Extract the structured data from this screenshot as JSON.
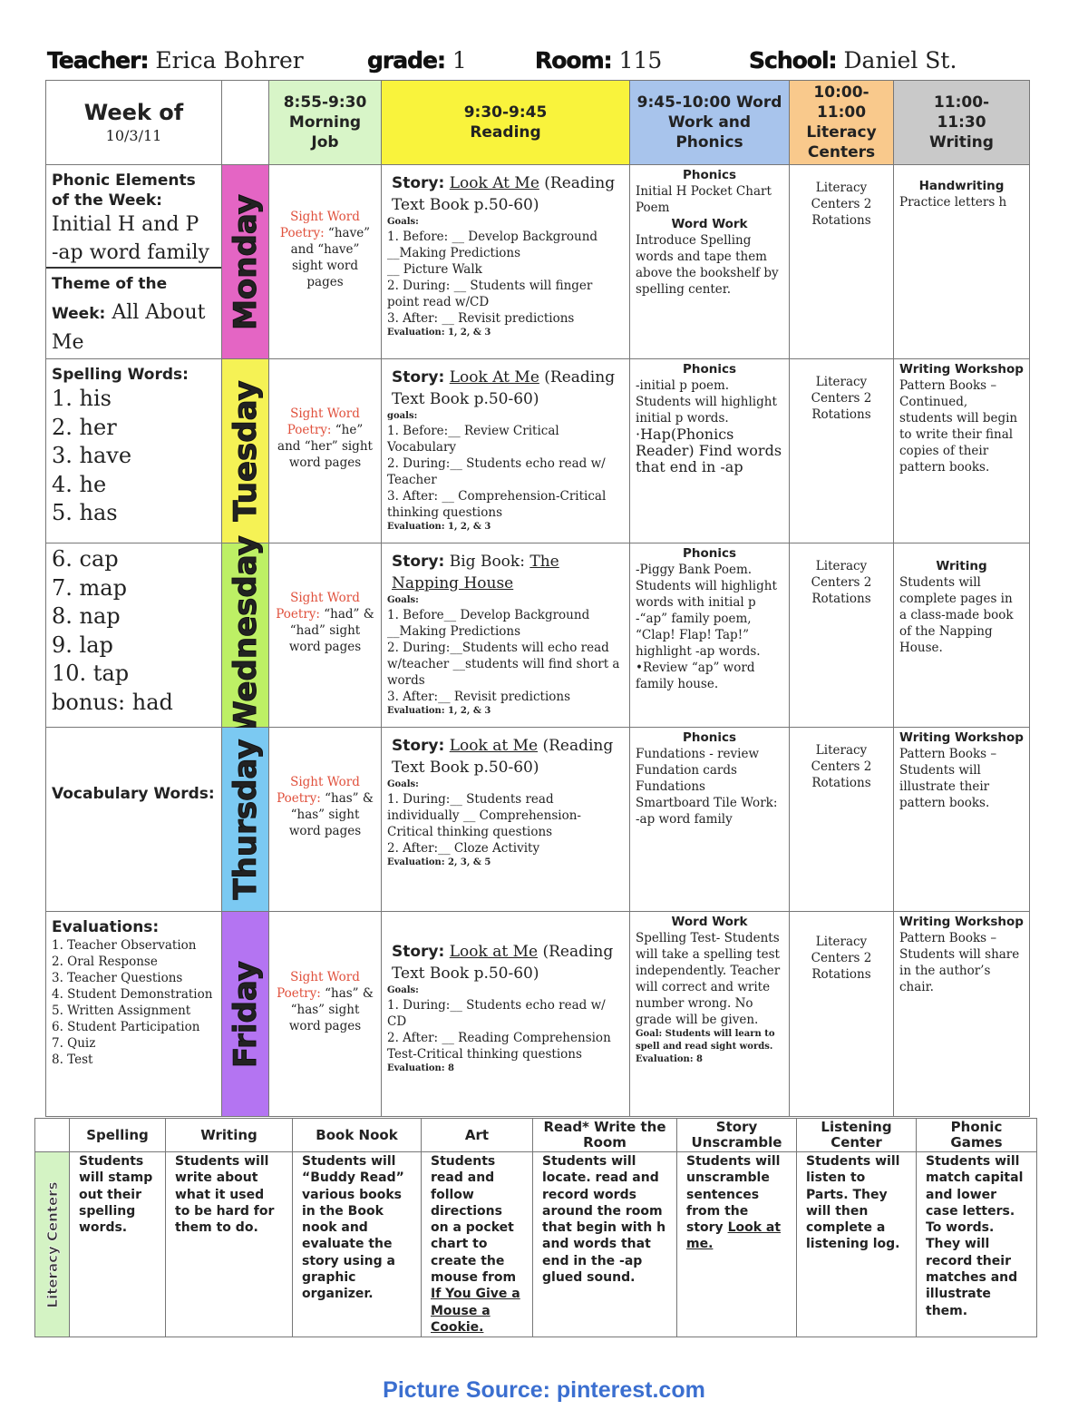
{
  "header": {
    "teacher_label": "Teacher:",
    "teacher": "Erica Bohrer",
    "grade_label": "grade:",
    "grade": "1",
    "room_label": "Room:",
    "room": "115",
    "school_label": "School:",
    "school": "Daniel St."
  },
  "columns": {
    "week_of": "Week of",
    "week_date": "10/3/11",
    "morning": "8:55-9:30 Morning Job",
    "reading": "9:30-9:45 Reading",
    "wordwork": "9:45-10:00 Word Work and Phonics",
    "literacy": "10:00-11:00 Literacy Centers",
    "writing": "11:00-11:30 Writing"
  },
  "colors": {
    "morning": "#d8f5c8",
    "reading": "#f9f33c",
    "wordwork": "#a8c4ec",
    "literacy": "#f9c98c",
    "writing": "#c9c9c9",
    "monday": "#e465c4",
    "tuesday": "#f5f255",
    "wednesday": "#bdf065",
    "thursday": "#7bc9f2",
    "friday": "#b474f2"
  },
  "days": [
    {
      "name": "Monday",
      "left": {
        "h1": "Phonic Elements of the Week:",
        "l1": "Initial H and P",
        "l2": "-ap word family",
        "h2": "Theme of the Week:",
        "l3": "All About Me"
      },
      "morning": {
        "label": "Sight Word Poetry:",
        "text": "“have” and “have” sight word pages"
      },
      "reading": {
        "story_label": "Story:",
        "title": "Look At Me",
        "rest": "(Reading Text Book p.50-60)",
        "goals": "Goals:",
        "lines": [
          "1. Before: __ Develop Background",
          "__Making Predictions",
          " __ Picture Walk",
          "2. During: __ Students will finger point read w/CD",
          "3. After: __ Revisit predictions"
        ],
        "evaluation": "Evaluation: 1, 2, & 3"
      },
      "wordwork": {
        "h1": "Phonics",
        "t1": "Initial H Pocket Chart Poem",
        "h2": "Word Work",
        "t2": "Introduce Spelling words and tape them above the bookshelf by spelling center."
      },
      "literacy": "Literacy Centers 2 Rotations",
      "writing": {
        "h": "Handwriting",
        "t": "Practice letters h"
      }
    },
    {
      "name": "Tuesday",
      "left": {
        "h1": "Spelling Words:",
        "items": [
          "1. his",
          "2. her",
          "3. have",
          "4. he",
          "5. has"
        ]
      },
      "morning": {
        "label": "Sight Word Poetry:",
        "text": "“he” and “her” sight word pages"
      },
      "reading": {
        "story_label": "Story:",
        "title": "Look At Me",
        "rest": "(Reading Text Book p.50-60)",
        "goals": "goals:",
        "lines": [
          "1. Before:__ Review Critical Vocabulary",
          "2. During:__ Students echo read w/ Teacher",
          "3. After: __ Comprehension-Critical thinking questions"
        ],
        "evaluation": "Evaluation: 1, 2, & 3"
      },
      "wordwork": {
        "h1": "Phonics",
        "t1": "-initial p poem. Students will highlight initial p words.",
        "t2": "·Hap(Phonics Reader) Find words that end in -ap"
      },
      "literacy": "Literacy Centers 2 Rotations",
      "writing": {
        "h": "Writing Workshop",
        "t": "Pattern Books – Continued, students will begin to write their final copies of their pattern books."
      }
    },
    {
      "name": "Wednesday",
      "left": {
        "items": [
          "6. cap",
          "7. map",
          "8. nap",
          "9. lap",
          "10. tap",
          "bonus: had"
        ]
      },
      "morning": {
        "label": "Sight Word Poetry:",
        "text": "“had” & “had” sight word pages"
      },
      "reading": {
        "story_label": "Story:",
        "prefix": "Big Book: ",
        "title": "The Napping House",
        "goals": "Goals:",
        "lines": [
          "1. Before__ Develop Background",
          "__Making Predictions",
          "2. During:__Students will echo read w/teacher __students will find short a words",
          "3. After:__ Revisit predictions"
        ],
        "evaluation": "Evaluation: 1, 2, & 3"
      },
      "wordwork": {
        "h1": "Phonics",
        "t1": "-Piggy Bank Poem. Students will highlight words with initial p -“ap” family poem, “Clap! Flap! Tap!” highlight -ap words. •Review “ap” word family house."
      },
      "literacy": "Literacy Centers 2 Rotations",
      "writing": {
        "h": "Writing",
        "t": "Students will complete pages in a class-made book of the Napping House."
      }
    },
    {
      "name": "Thursday",
      "left": {
        "h1": "Vocabulary Words:"
      },
      "morning": {
        "label": "Sight Word Poetry:",
        "text": "“has” & “has” sight word pages"
      },
      "reading": {
        "story_label": "Story:",
        "title": "Look at Me",
        "rest": "(Reading Text Book p.50-60)",
        "goals": "Goals:",
        "lines": [
          "1. During:__ Students read individually __ Comprehension-Critical thinking questions",
          "2. After:__ Cloze Activity"
        ],
        "evaluation": "Evaluation: 2, 3, & 5"
      },
      "wordwork": {
        "h1": "Phonics",
        "t1": "Fundations - review Fundation cards Fundations Smartboard Tile Work: -ap word family"
      },
      "literacy": "Literacy Centers 2 Rotations",
      "writing": {
        "h": "Writing Workshop",
        "t": "Pattern Books – Students will illustrate their pattern books."
      }
    },
    {
      "name": "Friday",
      "left": {
        "h1": "Evaluations:",
        "items": [
          "1. Teacher Observation",
          "2. Oral Response",
          "3. Teacher Questions",
          "4. Student Demonstration",
          "5. Written Assignment",
          "6. Student Participation",
          "7. Quiz",
          "8. Test"
        ]
      },
      "morning": {
        "label": "Sight Word Poetry:",
        "text": "“has” & “has” sight word pages"
      },
      "reading": {
        "story_label": "Story:",
        "title": "Look at Me",
        "rest": "(Reading Text Book p.50-60)",
        "goals": "Goals:",
        "lines": [
          "1. During:__ Students echo read w/ CD",
          "2. After: __ Reading Comprehension Test-Critical thinking questions"
        ],
        "evaluation": "Evaluation: 8"
      },
      "wordwork": {
        "h1": "Word Work",
        "t1": "Spelling Test- Students will take a spelling test independently. Teacher will correct and write number wrong.  No grade will be given.",
        "goal": "Goal: Students will learn to spell and read sight words.",
        "evaluation": "Evaluation: 8"
      },
      "literacy": "Literacy Centers 2 Rotations",
      "writing": {
        "h": "Writing Workshop",
        "t": "Pattern Books – Students will share in the author’s chair."
      }
    }
  ],
  "centers": {
    "side_label": "Literacy Centers",
    "items": [
      {
        "h": "Spelling",
        "t": "Students will stamp out their spelling words."
      },
      {
        "h": "Writing",
        "t": "Students will write about what it used to be hard for them to do."
      },
      {
        "h": "Book Nook",
        "t": "Students will “Buddy Read” various books in the Book nook and evaluate the story using a graphic organizer."
      },
      {
        "h": "Art",
        "t": "Students read and follow directions on a pocket chart to create the mouse from",
        "u": "If You Give a Mouse a Cookie."
      },
      {
        "h": "Read* Write the Room",
        "t": "Students will locate. read and record words around the room that begin with h and words that end in the -ap glued sound."
      },
      {
        "h": "Story Unscramble",
        "t": "Students will unscramble sentences from the story",
        "u": "Look at me."
      },
      {
        "h": "Listening Center",
        "t": "Students will listen to Parts.  They will then complete a listening log."
      },
      {
        "h": "Phonic Games",
        "t": "Students will match capital and lower case letters. To words. They will record their matches and illustrate them."
      }
    ]
  },
  "footer": "Picture Source: pinterest.com"
}
